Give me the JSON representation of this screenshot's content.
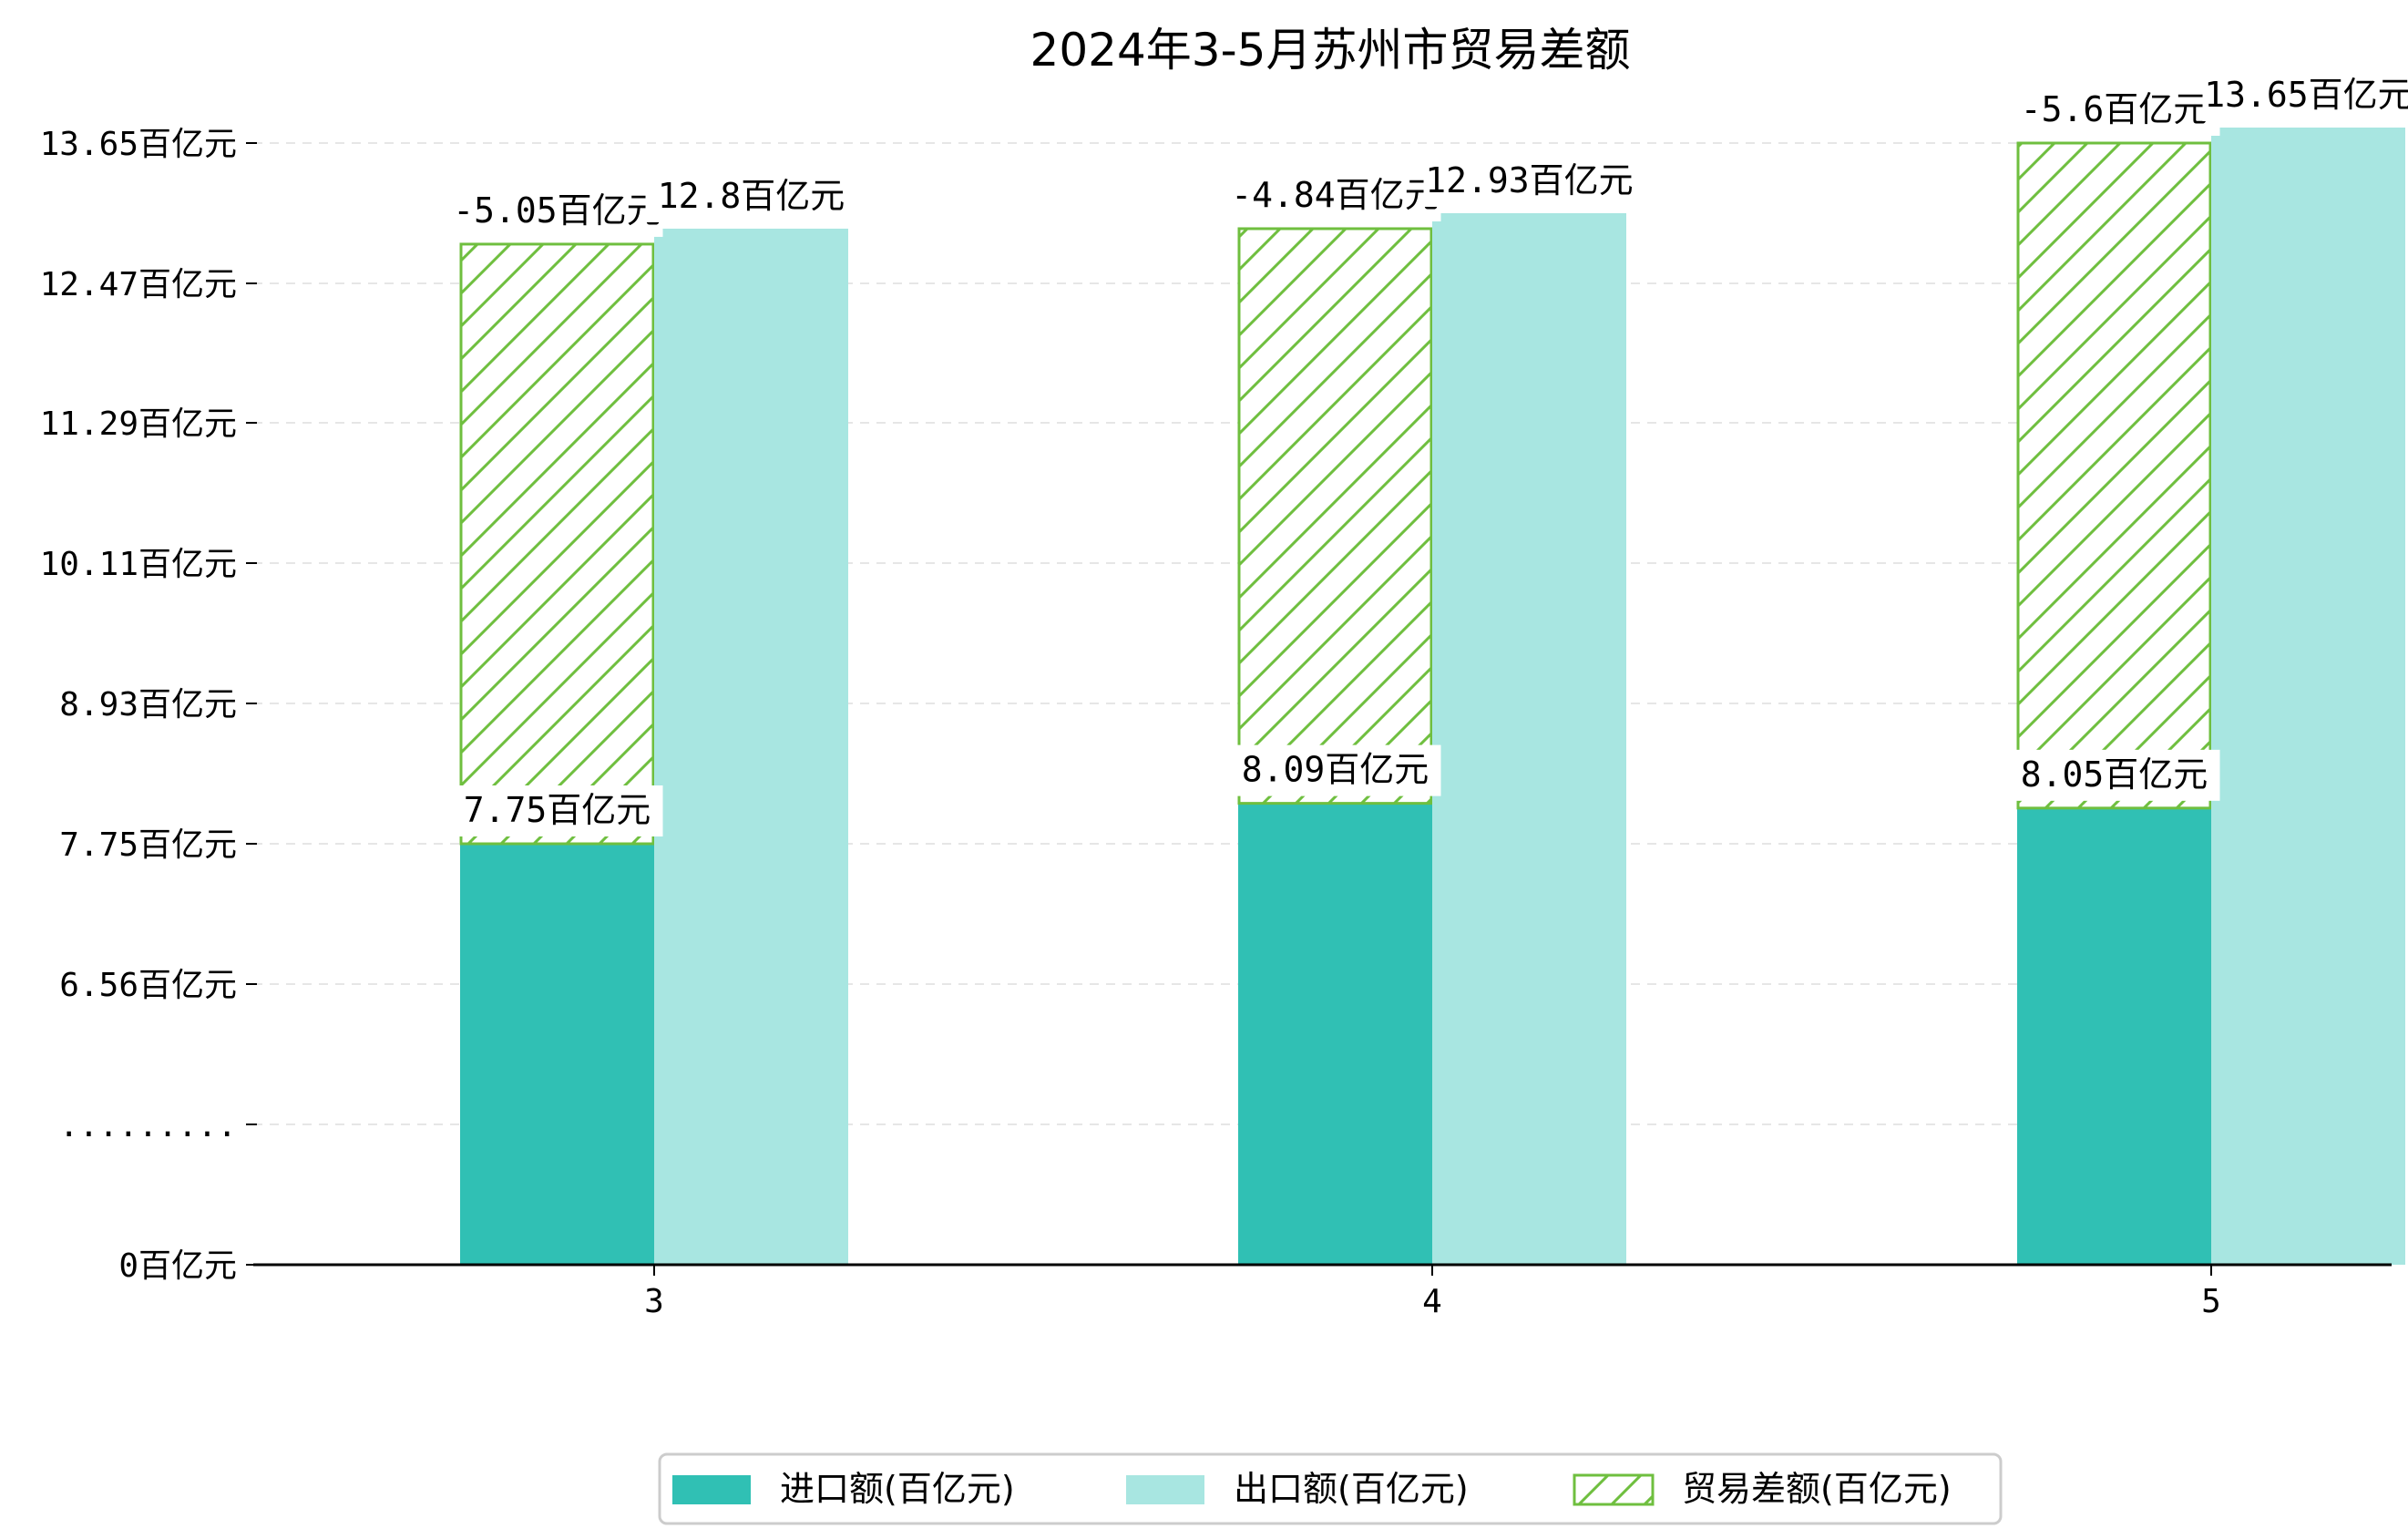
{
  "chart_data": {
    "type": "bar",
    "title": "2024年3-5月苏州市贸易差额",
    "categories": [
      "3",
      "4",
      "5"
    ],
    "unit": "百亿元",
    "series": [
      {
        "name": "进口额(百亿元)",
        "values": [
          7.75,
          8.09,
          8.05
        ],
        "labels": [
          "7.75百亿元",
          "8.09百亿元",
          "8.05百亿元"
        ],
        "color": "#30c0b4",
        "style": "solid"
      },
      {
        "name": "出口额(百亿元)",
        "values": [
          12.8,
          12.93,
          13.65
        ],
        "labels": [
          "12.8百亿元",
          "12.93百亿元",
          "13.65百亿元"
        ],
        "color": "#a8e6e1",
        "style": "solid"
      },
      {
        "name": "贸易差额(百亿元)",
        "values": [
          -5.05,
          -4.84,
          -5.6
        ],
        "labels": [
          "-5.05百亿元",
          "-4.84百亿元",
          "-5.6百亿元"
        ],
        "color": "#6fbf3f",
        "style": "hatched"
      }
    ],
    "y_ticks": [
      "0百亿元",
      ".........",
      "6.56百亿元",
      "7.75百亿元",
      "8.93百亿元",
      "10.11百亿元",
      "11.29百亿元",
      "12.47百亿元",
      "13.65百亿元"
    ],
    "y_tick_values": [
      0,
      5.38,
      6.56,
      7.75,
      8.93,
      10.11,
      11.29,
      12.47,
      13.65
    ],
    "y_axis_break": true,
    "grid": "horizontal-dashed",
    "legend_position": "bottom-center"
  }
}
